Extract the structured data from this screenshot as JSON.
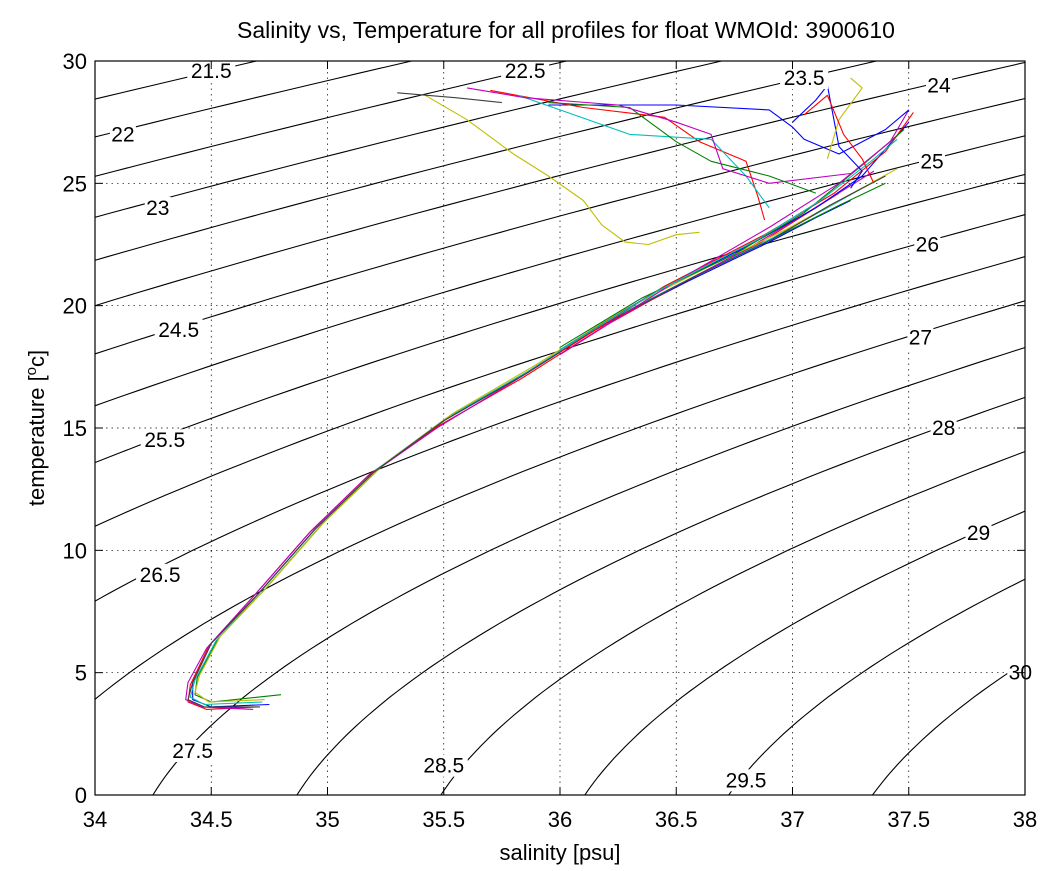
{
  "chart_data": {
    "type": "line",
    "title": "Salinity vs, Temperature for all profiles for float WMOId: 3900610",
    "xlabel": "salinity [psu]",
    "ylabel_main": "temperature [",
    "ylabel_sup": "o",
    "ylabel_tail": "c]",
    "xlim": [
      34,
      38
    ],
    "ylim": [
      0,
      30
    ],
    "xticks": [
      34,
      34.5,
      35,
      35.5,
      36,
      36.5,
      37,
      37.5,
      38
    ],
    "xtick_labels": [
      "34",
      "34.5",
      "35",
      "35.5",
      "36",
      "36.5",
      "37",
      "37.5",
      "38"
    ],
    "yticks": [
      0,
      5,
      10,
      15,
      20,
      25,
      30
    ],
    "ytick_labels": [
      "0",
      "5",
      "10",
      "15",
      "20",
      "25",
      "30"
    ],
    "grid": true,
    "density_contours": {
      "sigma_values": [
        21.5,
        22,
        22.5,
        23,
        23.5,
        24,
        24.5,
        25,
        25.5,
        26,
        26.5,
        27,
        27.5,
        28,
        28.5,
        29,
        29.5,
        30
      ],
      "labels": [
        {
          "text": "21.5",
          "s": 34.5,
          "t": 29.6
        },
        {
          "text": "22",
          "s": 34.12,
          "t": 27.0
        },
        {
          "text": "22.5",
          "s": 35.85,
          "t": 29.6
        },
        {
          "text": "23",
          "s": 34.27,
          "t": 24.0
        },
        {
          "text": "23.5",
          "s": 37.05,
          "t": 29.3
        },
        {
          "text": "24",
          "s": 37.63,
          "t": 29.0
        },
        {
          "text": "24.5",
          "s": 34.36,
          "t": 19.0
        },
        {
          "text": "25",
          "s": 37.6,
          "t": 25.9
        },
        {
          "text": "25.5",
          "s": 34.3,
          "t": 14.5
        },
        {
          "text": "26",
          "s": 37.58,
          "t": 22.5
        },
        {
          "text": "26.5",
          "s": 34.28,
          "t": 9.0
        },
        {
          "text": "27",
          "s": 37.55,
          "t": 18.7
        },
        {
          "text": "27.5",
          "s": 34.42,
          "t": 1.8
        },
        {
          "text": "28",
          "s": 37.65,
          "t": 15.0
        },
        {
          "text": "28.5",
          "s": 35.5,
          "t": 1.2
        },
        {
          "text": "29",
          "s": 37.8,
          "t": 10.7
        },
        {
          "text": "29.5",
          "s": 36.8,
          "t": 0.6
        },
        {
          "text": "30",
          "s": 37.98,
          "t": 5.0
        }
      ]
    },
    "series": [
      {
        "color": "#0000ff",
        "points": [
          [
            34.75,
            3.7
          ],
          [
            34.5,
            3.6
          ],
          [
            34.42,
            3.9
          ],
          [
            34.42,
            4.6
          ],
          [
            34.5,
            6.2
          ],
          [
            34.7,
            8.2
          ],
          [
            34.95,
            10.9
          ],
          [
            35.2,
            13.2
          ],
          [
            35.5,
            15.3
          ],
          [
            35.85,
            17.2
          ],
          [
            36.2,
            19.3
          ],
          [
            36.55,
            21.0
          ],
          [
            36.9,
            22.6
          ],
          [
            37.1,
            23.6
          ],
          [
            37.25,
            24.3
          ]
        ]
      },
      {
        "color": "#008000",
        "points": [
          [
            34.8,
            4.1
          ],
          [
            34.5,
            3.8
          ],
          [
            34.43,
            4.1
          ],
          [
            34.44,
            4.8
          ],
          [
            34.53,
            6.4
          ],
          [
            34.73,
            8.4
          ],
          [
            34.98,
            11.1
          ],
          [
            35.23,
            13.4
          ],
          [
            35.53,
            15.5
          ],
          [
            35.88,
            17.4
          ],
          [
            36.23,
            19.5
          ],
          [
            36.6,
            21.3
          ],
          [
            36.95,
            22.9
          ],
          [
            37.2,
            24.1
          ],
          [
            37.4,
            25.0
          ]
        ]
      },
      {
        "color": "#ff0000",
        "points": [
          [
            34.7,
            3.6
          ],
          [
            34.48,
            3.5
          ],
          [
            34.4,
            3.8
          ],
          [
            34.41,
            4.5
          ],
          [
            34.49,
            6.1
          ],
          [
            34.68,
            8.1
          ],
          [
            34.93,
            10.8
          ],
          [
            35.18,
            13.1
          ],
          [
            35.48,
            15.1
          ],
          [
            35.83,
            17.0
          ],
          [
            36.18,
            19.1
          ],
          [
            36.5,
            20.8
          ],
          [
            36.85,
            22.5
          ],
          [
            37.05,
            23.7
          ],
          [
            37.2,
            24.6
          ]
        ]
      },
      {
        "color": "#00bfbf",
        "points": [
          [
            34.72,
            3.8
          ],
          [
            34.47,
            3.7
          ],
          [
            34.41,
            4.0
          ],
          [
            34.43,
            4.7
          ],
          [
            34.52,
            6.3
          ],
          [
            34.71,
            8.3
          ],
          [
            34.96,
            11.0
          ],
          [
            35.21,
            13.3
          ],
          [
            35.51,
            15.4
          ],
          [
            35.86,
            17.3
          ],
          [
            36.21,
            19.4
          ],
          [
            36.58,
            21.2
          ],
          [
            36.92,
            22.8
          ],
          [
            37.15,
            24.0
          ],
          [
            37.3,
            24.8
          ]
        ]
      },
      {
        "color": "#bf00bf",
        "points": [
          [
            34.68,
            3.5
          ],
          [
            34.46,
            3.6
          ],
          [
            34.39,
            3.9
          ],
          [
            34.4,
            4.6
          ],
          [
            34.48,
            6.0
          ],
          [
            34.67,
            8.0
          ],
          [
            34.92,
            10.7
          ],
          [
            35.17,
            13.0
          ],
          [
            35.47,
            15.0
          ],
          [
            35.8,
            16.9
          ],
          [
            36.15,
            19.0
          ],
          [
            36.48,
            20.7
          ],
          [
            36.82,
            22.4
          ],
          [
            37.08,
            23.9
          ],
          [
            37.35,
            25.5
          ]
        ]
      },
      {
        "color": "#bfbf00",
        "points": [
          [
            34.73,
            3.9
          ],
          [
            34.49,
            3.8
          ],
          [
            34.43,
            4.2
          ],
          [
            34.45,
            4.9
          ],
          [
            34.54,
            6.5
          ],
          [
            34.74,
            8.5
          ],
          [
            34.99,
            11.2
          ],
          [
            35.24,
            13.5
          ],
          [
            35.54,
            15.6
          ],
          [
            35.9,
            17.6
          ],
          [
            36.25,
            19.7
          ],
          [
            36.62,
            21.5
          ],
          [
            36.97,
            23.1
          ],
          [
            37.22,
            24.4
          ],
          [
            37.45,
            25.6
          ]
        ]
      },
      {
        "color": "#404040",
        "points": [
          [
            34.71,
            3.6
          ],
          [
            34.47,
            3.6
          ],
          [
            34.4,
            3.9
          ],
          [
            34.42,
            4.6
          ],
          [
            34.5,
            6.2
          ],
          [
            34.7,
            8.2
          ],
          [
            34.95,
            10.9
          ],
          [
            35.2,
            13.2
          ],
          [
            35.5,
            15.3
          ],
          [
            35.85,
            17.2
          ],
          [
            36.2,
            19.3
          ],
          [
            36.56,
            21.1
          ],
          [
            36.91,
            22.7
          ],
          [
            37.16,
            24.1
          ],
          [
            37.4,
            25.3
          ]
        ]
      },
      {
        "color": "#0000ff",
        "points": [
          [
            36.0,
            18.2
          ],
          [
            36.4,
            20.5
          ],
          [
            36.8,
            22.4
          ],
          [
            37.1,
            24.0
          ],
          [
            37.3,
            25.3
          ],
          [
            37.5,
            27.5
          ]
        ]
      },
      {
        "color": "#ff0000",
        "points": [
          [
            36.0,
            18.1
          ],
          [
            36.45,
            20.8
          ],
          [
            36.88,
            22.9
          ],
          [
            37.18,
            24.6
          ],
          [
            37.4,
            26.3
          ],
          [
            37.52,
            27.9
          ]
        ]
      },
      {
        "color": "#008000",
        "points": [
          [
            36.0,
            18.3
          ],
          [
            36.35,
            20.3
          ],
          [
            36.75,
            22.1
          ],
          [
            37.05,
            23.8
          ],
          [
            37.32,
            25.9
          ],
          [
            37.48,
            27.2
          ]
        ]
      },
      {
        "color": "#bf00bf",
        "points": [
          [
            36.0,
            18.0
          ],
          [
            36.5,
            21.0
          ],
          [
            36.9,
            23.2
          ],
          [
            37.2,
            25.0
          ],
          [
            37.42,
            26.7
          ],
          [
            37.5,
            28.0
          ]
        ]
      },
      {
        "color": "#00bfbf",
        "points": [
          [
            36.0,
            18.2
          ],
          [
            36.42,
            20.6
          ],
          [
            36.85,
            22.7
          ],
          [
            37.12,
            24.3
          ],
          [
            37.35,
            26.0
          ],
          [
            37.45,
            26.8
          ]
        ]
      },
      {
        "color": "#bfbf00",
        "points": [
          [
            35.42,
            28.6
          ],
          [
            35.6,
            27.6
          ],
          [
            35.8,
            26.2
          ],
          [
            35.95,
            25.3
          ],
          [
            36.1,
            24.3
          ],
          [
            36.18,
            23.3
          ],
          [
            36.28,
            22.6
          ],
          [
            36.38,
            22.5
          ],
          [
            36.5,
            22.9
          ],
          [
            36.6,
            23.0
          ]
        ]
      },
      {
        "color": "#0000ff",
        "points": [
          [
            35.95,
            28.2
          ],
          [
            36.5,
            28.2
          ],
          [
            36.9,
            28.0
          ],
          [
            37.0,
            27.3
          ],
          [
            37.05,
            26.8
          ],
          [
            37.2,
            26.2
          ],
          [
            37.4,
            27.2
          ],
          [
            37.5,
            28.0
          ]
        ]
      },
      {
        "color": "#ff0000",
        "points": [
          [
            35.7,
            28.8
          ],
          [
            36.1,
            28.1
          ],
          [
            36.45,
            27.7
          ],
          [
            36.6,
            26.7
          ],
          [
            36.8,
            25.9
          ],
          [
            36.85,
            24.5
          ],
          [
            36.88,
            23.5
          ]
        ]
      },
      {
        "color": "#00bfbf",
        "points": [
          [
            35.82,
            28.6
          ],
          [
            36.0,
            28.0
          ],
          [
            36.3,
            27.0
          ],
          [
            36.65,
            26.8
          ],
          [
            36.8,
            25.3
          ],
          [
            36.9,
            24.0
          ]
        ]
      },
      {
        "color": "#008000",
        "points": [
          [
            35.95,
            28.3
          ],
          [
            36.3,
            28.1
          ],
          [
            36.5,
            26.7
          ],
          [
            36.65,
            25.9
          ],
          [
            36.9,
            25.3
          ],
          [
            37.1,
            24.6
          ]
        ]
      },
      {
        "color": "#bf00bf",
        "points": [
          [
            35.6,
            28.9
          ],
          [
            35.85,
            28.5
          ],
          [
            36.25,
            28.2
          ],
          [
            36.5,
            27.5
          ],
          [
            36.65,
            27.0
          ],
          [
            36.7,
            25.6
          ],
          [
            36.9,
            25.0
          ],
          [
            37.25,
            25.4
          ]
        ]
      },
      {
        "color": "#404040",
        "points": [
          [
            35.3,
            28.7
          ],
          [
            35.55,
            28.5
          ],
          [
            35.75,
            28.3
          ]
        ]
      },
      {
        "color": "#0000ff",
        "points": [
          [
            37.0,
            27.5
          ],
          [
            37.1,
            28.4
          ],
          [
            37.15,
            29.0
          ],
          [
            37.2,
            26.5
          ],
          [
            37.3,
            25.5
          ],
          [
            37.25,
            24.8
          ]
        ]
      },
      {
        "color": "#bfbf00",
        "points": [
          [
            37.25,
            29.3
          ],
          [
            37.3,
            28.9
          ],
          [
            37.2,
            27.6
          ],
          [
            37.15,
            26.0
          ]
        ]
      },
      {
        "color": "#ff0000",
        "points": [
          [
            37.05,
            27.8
          ],
          [
            37.15,
            28.6
          ],
          [
            37.22,
            27.0
          ],
          [
            37.3,
            26.0
          ],
          [
            37.35,
            25.0
          ]
        ]
      }
    ]
  }
}
